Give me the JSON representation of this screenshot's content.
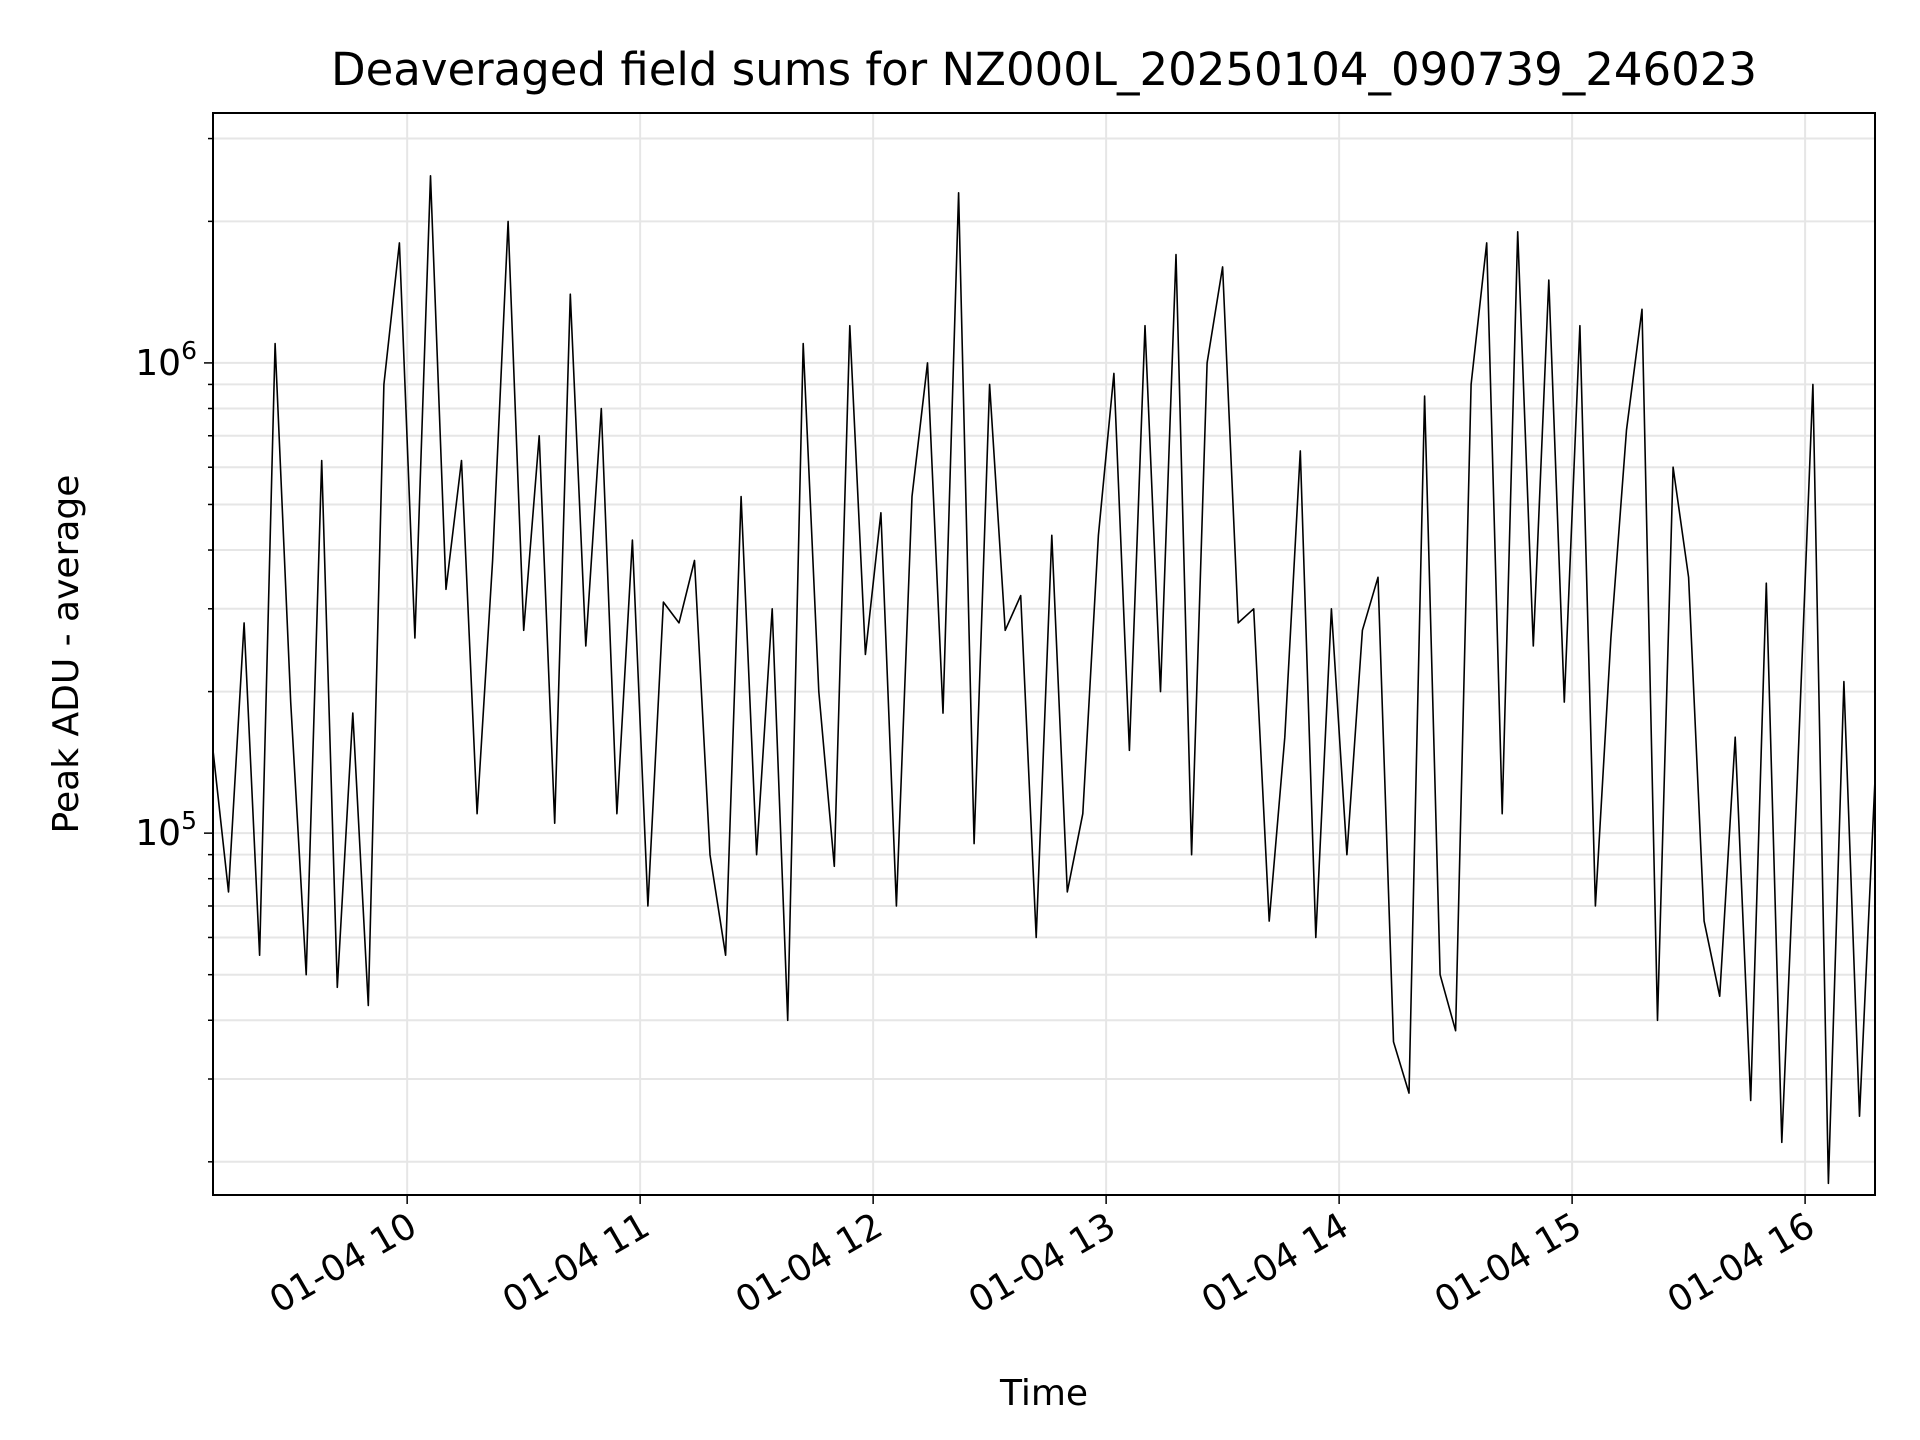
{
  "chart_data": {
    "type": "line",
    "title": "Deaveraged field sums for NZ000L_20250104_090739_246023",
    "xlabel": "Time",
    "ylabel": "Peak ADU - average",
    "yscale": "log",
    "xlim": [
      "2025-01-04T09:10",
      "2025-01-04T16:18"
    ],
    "ylim": [
      17000,
      3400000
    ],
    "grid": true,
    "line_color": "#000000",
    "x_ticks": [
      {
        "value": "2025-01-04T10:00",
        "label": "01-04 10"
      },
      {
        "value": "2025-01-04T11:00",
        "label": "01-04 11"
      },
      {
        "value": "2025-01-04T12:00",
        "label": "01-04 12"
      },
      {
        "value": "2025-01-04T13:00",
        "label": "01-04 13"
      },
      {
        "value": "2025-01-04T14:00",
        "label": "01-04 14"
      },
      {
        "value": "2025-01-04T15:00",
        "label": "01-04 15"
      },
      {
        "value": "2025-01-04T16:00",
        "label": "01-04 16"
      }
    ],
    "y_ticks": [
      {
        "value": 100000,
        "base": "10",
        "exp": "5"
      },
      {
        "value": 1000000,
        "base": "10",
        "exp": "6"
      }
    ],
    "series": [
      {
        "x": [
          "2025-01-04T09:10",
          "2025-01-04T09:14",
          "2025-01-04T09:18",
          "2025-01-04T09:22",
          "2025-01-04T09:26",
          "2025-01-04T09:30",
          "2025-01-04T09:34",
          "2025-01-04T09:38",
          "2025-01-04T09:42",
          "2025-01-04T09:46",
          "2025-01-04T09:50",
          "2025-01-04T09:54",
          "2025-01-04T09:58",
          "2025-01-04T10:02",
          "2025-01-04T10:06",
          "2025-01-04T10:10",
          "2025-01-04T10:14",
          "2025-01-04T10:18",
          "2025-01-04T10:22",
          "2025-01-04T10:26",
          "2025-01-04T10:30",
          "2025-01-04T10:34",
          "2025-01-04T10:38",
          "2025-01-04T10:42",
          "2025-01-04T10:46",
          "2025-01-04T10:50",
          "2025-01-04T10:54",
          "2025-01-04T10:58",
          "2025-01-04T11:02",
          "2025-01-04T11:06",
          "2025-01-04T11:10",
          "2025-01-04T11:14",
          "2025-01-04T11:18",
          "2025-01-04T11:22",
          "2025-01-04T11:26",
          "2025-01-04T11:30",
          "2025-01-04T11:34",
          "2025-01-04T11:38",
          "2025-01-04T11:42",
          "2025-01-04T11:46",
          "2025-01-04T11:50",
          "2025-01-04T11:54",
          "2025-01-04T11:58",
          "2025-01-04T12:02",
          "2025-01-04T12:06",
          "2025-01-04T12:10",
          "2025-01-04T12:14",
          "2025-01-04T12:18",
          "2025-01-04T12:22",
          "2025-01-04T12:26",
          "2025-01-04T12:30",
          "2025-01-04T12:34",
          "2025-01-04T12:38",
          "2025-01-04T12:42",
          "2025-01-04T12:46",
          "2025-01-04T12:50",
          "2025-01-04T12:54",
          "2025-01-04T12:58",
          "2025-01-04T13:02",
          "2025-01-04T13:06",
          "2025-01-04T13:10",
          "2025-01-04T13:14",
          "2025-01-04T13:18",
          "2025-01-04T13:22",
          "2025-01-04T13:26",
          "2025-01-04T13:30",
          "2025-01-04T13:34",
          "2025-01-04T13:38",
          "2025-01-04T13:42",
          "2025-01-04T13:46",
          "2025-01-04T13:50",
          "2025-01-04T13:54",
          "2025-01-04T13:58",
          "2025-01-04T14:02",
          "2025-01-04T14:06",
          "2025-01-04T14:10",
          "2025-01-04T14:14",
          "2025-01-04T14:18",
          "2025-01-04T14:22",
          "2025-01-04T14:26",
          "2025-01-04T14:30",
          "2025-01-04T14:34",
          "2025-01-04T14:38",
          "2025-01-04T14:42",
          "2025-01-04T14:46",
          "2025-01-04T14:50",
          "2025-01-04T14:54",
          "2025-01-04T14:58",
          "2025-01-04T15:02",
          "2025-01-04T15:06",
          "2025-01-04T15:10",
          "2025-01-04T15:14",
          "2025-01-04T15:18",
          "2025-01-04T15:22",
          "2025-01-04T15:26",
          "2025-01-04T15:30",
          "2025-01-04T15:34",
          "2025-01-04T15:38",
          "2025-01-04T15:42",
          "2025-01-04T15:46",
          "2025-01-04T15:50",
          "2025-01-04T15:54",
          "2025-01-04T15:58",
          "2025-01-04T16:02",
          "2025-01-04T16:06",
          "2025-01-04T16:10",
          "2025-01-04T16:14",
          "2025-01-04T16:18"
        ],
        "y": [
          150000,
          75000,
          280000,
          55000,
          1100000,
          190000,
          50000,
          620000,
          47000,
          180000,
          43000,
          900000,
          1800000,
          260000,
          2500000,
          330000,
          620000,
          110000,
          380000,
          2000000,
          270000,
          700000,
          105000,
          1400000,
          250000,
          800000,
          110000,
          420000,
          70000,
          310000,
          280000,
          380000,
          90000,
          55000,
          520000,
          90000,
          300000,
          40000,
          1100000,
          200000,
          85000,
          1200000,
          240000,
          480000,
          70000,
          520000,
          1000000,
          180000,
          2300000,
          95000,
          900000,
          270000,
          320000,
          60000,
          430000,
          75000,
          110000,
          430000,
          950000,
          150000,
          1200000,
          200000,
          1700000,
          90000,
          1000000,
          1600000,
          280000,
          300000,
          65000,
          160000,
          650000,
          60000,
          300000,
          90000,
          270000,
          350000,
          36000,
          28000,
          850000,
          50000,
          38000,
          900000,
          1800000,
          110000,
          1900000,
          250000,
          1500000,
          190000,
          1200000,
          70000,
          260000,
          720000,
          1300000,
          40000,
          600000,
          350000,
          65000,
          45000,
          160000,
          27000,
          340000,
          22000,
          130000,
          900000,
          18000,
          210000,
          25000,
          130000
        ]
      }
    ]
  }
}
